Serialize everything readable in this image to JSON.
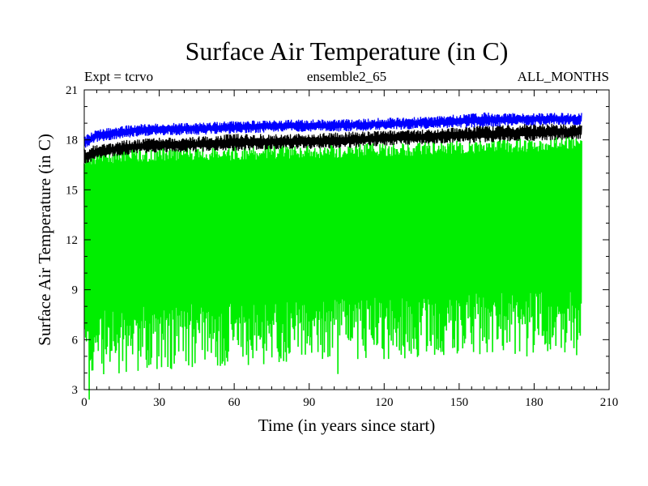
{
  "chart_data": {
    "type": "line",
    "title": "Surface Air Temperature (in C)",
    "subtitle_left": "Expt = tcrvo",
    "subtitle_center": "ensemble2_65",
    "subtitle_right": "ALL_MONTHS",
    "xlabel": "Time (in years since start)",
    "ylabel": "Surface Air Temperature (in C)",
    "xlim": [
      0,
      210
    ],
    "ylim": [
      3,
      21
    ],
    "xticks": [
      0,
      30,
      60,
      90,
      120,
      150,
      180,
      210
    ],
    "yticks": [
      3,
      6,
      9,
      12,
      15,
      18,
      21
    ],
    "x_range_data": [
      0,
      199
    ],
    "series": [
      {
        "name": "green monthly series",
        "color": "#00ee00",
        "x": [
          0,
          5,
          10,
          20,
          30,
          40,
          60,
          80,
          100,
          120,
          140,
          160,
          180,
          199
        ],
        "low": [
          4.7,
          5.6,
          5.9,
          6.0,
          6.1,
          6.2,
          6.3,
          6.5,
          6.6,
          6.7,
          6.8,
          6.9,
          7.0,
          7.1
        ],
        "high": [
          16.4,
          17.0,
          17.0,
          17.1,
          17.1,
          17.2,
          17.2,
          17.3,
          17.3,
          17.4,
          17.5,
          17.6,
          17.7,
          17.8
        ]
      },
      {
        "name": "black monthly series",
        "color": "#000000",
        "x": [
          0,
          5,
          10,
          20,
          30,
          40,
          60,
          80,
          100,
          120,
          140,
          160,
          180,
          199
        ],
        "low": [
          16.6,
          17.0,
          17.1,
          17.3,
          17.4,
          17.4,
          17.5,
          17.6,
          17.6,
          17.8,
          17.9,
          18.0,
          18.1,
          18.2
        ],
        "high": [
          17.3,
          17.6,
          17.7,
          17.9,
          18.0,
          18.0,
          18.2,
          18.2,
          18.3,
          18.4,
          18.5,
          18.7,
          18.8,
          18.8
        ]
      },
      {
        "name": "blue monthly series",
        "color": "#0000ff",
        "x": [
          0,
          5,
          10,
          20,
          30,
          40,
          60,
          80,
          100,
          120,
          140,
          160,
          180,
          199
        ],
        "low": [
          17.6,
          18.0,
          18.1,
          18.3,
          18.4,
          18.4,
          18.5,
          18.6,
          18.6,
          18.7,
          18.8,
          18.9,
          19.0,
          19.0
        ],
        "high": [
          18.1,
          18.5,
          18.6,
          18.8,
          18.9,
          18.9,
          19.0,
          19.1,
          19.1,
          19.2,
          19.3,
          19.5,
          19.5,
          19.5
        ]
      }
    ]
  }
}
